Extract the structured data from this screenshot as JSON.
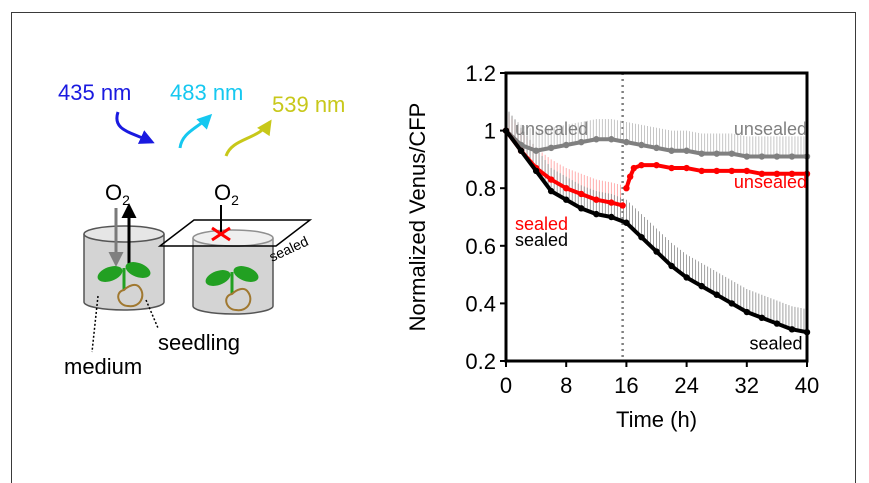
{
  "colors": {
    "c435": "#1a1ae0",
    "c483": "#16c8f0",
    "c539": "#c8c81a",
    "gray": "#808080",
    "red": "#ff0000",
    "black": "#000000",
    "plant": "#22a022",
    "root": "#a07830",
    "seal_x": "#ff0000"
  },
  "schematic": {
    "wavelengths": [
      {
        "label": "435 nm",
        "color": "#1a1ae0"
      },
      {
        "label": "483 nm",
        "color": "#16c8f0"
      },
      {
        "label": "539 nm",
        "color": "#c8c81a"
      }
    ],
    "o2_text": "O",
    "o2_sub": "2",
    "sealed_label": "sealed",
    "seedling_label": "seedling",
    "medium_label": "medium"
  },
  "chart_data": {
    "type": "line",
    "xlabel": "Time (h)",
    "ylabel": "Normalized Venus/CFP",
    "xlim": [
      0,
      40
    ],
    "ylim": [
      0.2,
      1.2
    ],
    "xticks": [
      0,
      8,
      16,
      24,
      32,
      40
    ],
    "yticks": [
      0.2,
      0.4,
      0.6,
      0.8,
      1.0,
      1.2
    ],
    "ytick_labels": [
      "0.2",
      "0.4",
      "0.6",
      "0.8",
      "1",
      "1.2"
    ],
    "vline_x": 15.5,
    "series": [
      {
        "name": "unsealed",
        "color": "#808080",
        "x": [
          0,
          2,
          4,
          6,
          8,
          10,
          12,
          14,
          16,
          18,
          20,
          22,
          24,
          26,
          28,
          30,
          32,
          34,
          36,
          38,
          40
        ],
        "y": [
          1.0,
          0.95,
          0.93,
          0.94,
          0.95,
          0.96,
          0.97,
          0.97,
          0.96,
          0.95,
          0.94,
          0.93,
          0.93,
          0.92,
          0.92,
          0.92,
          0.91,
          0.91,
          0.91,
          0.91,
          0.91
        ]
      },
      {
        "name": "sealed",
        "color": "#ff0000",
        "x": [
          0,
          2,
          4,
          6,
          8,
          10,
          12,
          14,
          15.5
        ],
        "y": [
          1.0,
          0.93,
          0.87,
          0.83,
          0.8,
          0.78,
          0.76,
          0.75,
          0.74
        ]
      },
      {
        "name": "unsealed",
        "color": "#ff0000",
        "x": [
          16,
          16.5,
          17,
          18,
          20,
          22,
          24,
          26,
          28,
          30,
          32,
          34,
          36,
          38,
          40
        ],
        "y": [
          0.8,
          0.84,
          0.87,
          0.88,
          0.88,
          0.87,
          0.87,
          0.86,
          0.86,
          0.86,
          0.86,
          0.85,
          0.85,
          0.85,
          0.85
        ]
      },
      {
        "name": "sealed",
        "color": "#000000",
        "x": [
          0,
          2,
          4,
          6,
          8,
          10,
          12,
          14,
          16,
          18,
          20,
          22,
          24,
          26,
          28,
          30,
          32,
          34,
          36,
          38,
          40
        ],
        "y": [
          1.0,
          0.93,
          0.86,
          0.79,
          0.76,
          0.73,
          0.71,
          0.7,
          0.68,
          0.63,
          0.58,
          0.53,
          0.49,
          0.46,
          0.43,
          0.4,
          0.37,
          0.35,
          0.33,
          0.31,
          0.3
        ]
      }
    ],
    "annotations": [
      {
        "text": "unsealed",
        "color": "#808080",
        "x": 1.2,
        "y": 0.985
      },
      {
        "text": "unsealed",
        "color": "#808080",
        "x": 40,
        "y": 0.985,
        "anchor": "end"
      },
      {
        "text": "unsealed",
        "color": "#ff0000",
        "x": 40,
        "y": 0.8,
        "anchor": "end"
      },
      {
        "text": "sealed",
        "color": "#ff0000",
        "x": 1.2,
        "y": 0.655
      },
      {
        "text": "sealed",
        "color": "#000000",
        "x": 1.2,
        "y": 0.6
      },
      {
        "text": "sealed",
        "color": "#000000",
        "x": 39.4,
        "y": 0.24,
        "anchor": "end"
      }
    ]
  }
}
